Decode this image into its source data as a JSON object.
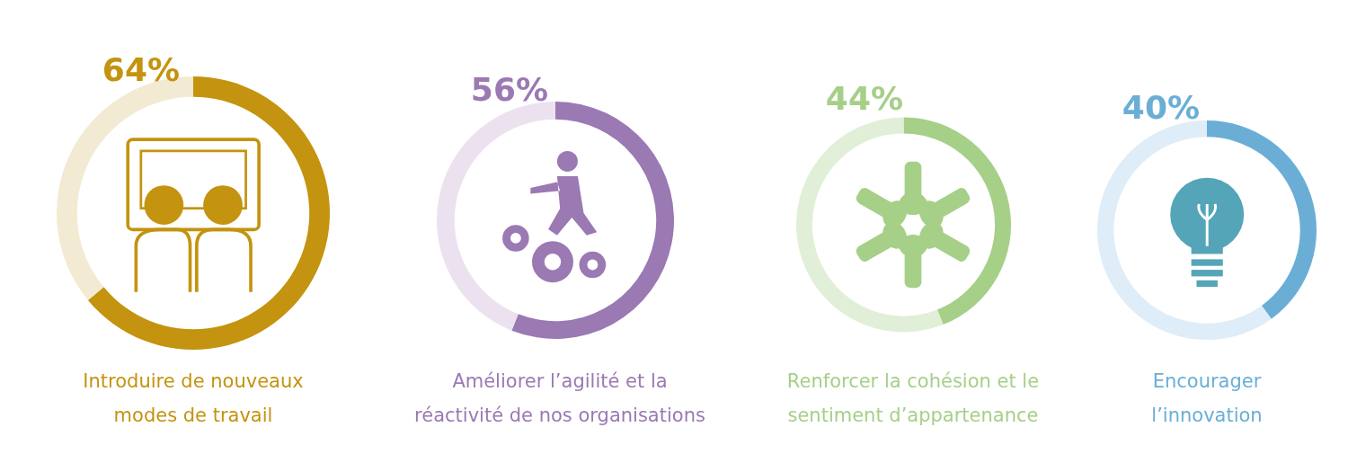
{
  "chart_data": [
    {
      "type": "donut",
      "title": "Introduire de nouveaux modes de travail",
      "categories": [
        null,
        null
      ],
      "values": [
        64,
        36
      ],
      "colors": [
        "#c4930f",
        "#f3ead3"
      ],
      "value_labels": [
        "64%",
        null
      ]
    },
    {
      "type": "donut",
      "title": "Améliorer l’agilité et la réactivité de nos organisations",
      "categories": [
        null,
        null
      ],
      "values": [
        56,
        44
      ],
      "colors": [
        "#9b79b3",
        "#ece2ef"
      ],
      "value_labels": [
        "56%",
        null
      ]
    },
    {
      "type": "donut",
      "title": "Renforcer la cohésion et le sentiment d’appartenance",
      "categories": [
        null,
        null
      ],
      "values": [
        44,
        56
      ],
      "colors": [
        "#a6cf88",
        "#e2efd8"
      ],
      "value_labels": [
        "44%",
        null
      ]
    },
    {
      "type": "donut",
      "title": "Encourager l’innovation",
      "categories": [
        null,
        null
      ],
      "values": [
        40,
        60
      ],
      "colors": [
        "#6aaed6",
        "#deedf7"
      ],
      "value_labels": [
        "40%",
        null
      ]
    }
  ]
}
